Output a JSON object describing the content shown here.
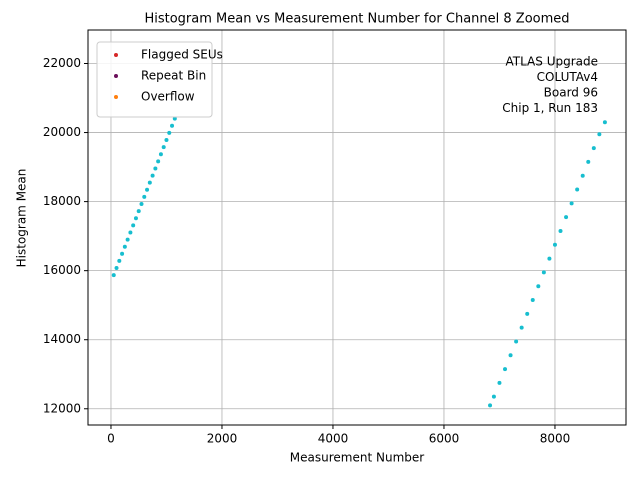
{
  "chart_data": {
    "type": "scatter",
    "title": "Histogram Mean vs Measurement Number for Channel 8 Zoomed",
    "xlabel": "Measurement Number",
    "ylabel": "Histogram Mean",
    "annotation": [
      "ATLAS Upgrade",
      "COLUTAv4",
      "Board 96",
      "Chip 1, Run 183"
    ],
    "xlim": [
      -414,
      9280
    ],
    "ylim": [
      11530,
      22970
    ],
    "xticks": [
      0,
      2000,
      4000,
      6000,
      8000
    ],
    "yticks": [
      12000,
      14000,
      16000,
      18000,
      20000,
      22000
    ],
    "grid": true,
    "legend": "upper left",
    "series": [
      {
        "color": "#17becf",
        "x": [
          50,
          100,
          150,
          200,
          250,
          300,
          350,
          400,
          450,
          500,
          550,
          600,
          650,
          700,
          750,
          800,
          850,
          900,
          950,
          1000,
          1050,
          1100,
          1150,
          6830,
          6900,
          7000,
          7100,
          7200,
          7300,
          7400,
          7500,
          7600,
          7700,
          7800,
          7900,
          8000,
          8100,
          8200,
          8300,
          8400,
          8500,
          8600,
          8700,
          8800,
          8900
        ],
        "values": [
          15870,
          16076,
          16282,
          16488,
          16694,
          16900,
          17106,
          17312,
          17518,
          17724,
          17930,
          18136,
          18342,
          18548,
          18754,
          18960,
          19166,
          19372,
          19578,
          19784,
          19990,
          20196,
          20402,
          12100,
          12350,
          12750,
          13150,
          13550,
          13950,
          14350,
          14750,
          15150,
          15550,
          15950,
          16350,
          16750,
          17150,
          17550,
          17950,
          18350,
          18750,
          19150,
          19550,
          19950,
          20300
        ]
      },
      {
        "name": "Flagged SEUs",
        "color": "#d62728",
        "x": [],
        "values": []
      },
      {
        "name": "Repeat Bin",
        "color": "#6b0f5a",
        "x": [],
        "values": []
      },
      {
        "name": "Overflow",
        "color": "#ff7f0e",
        "x": [],
        "values": []
      }
    ]
  }
}
